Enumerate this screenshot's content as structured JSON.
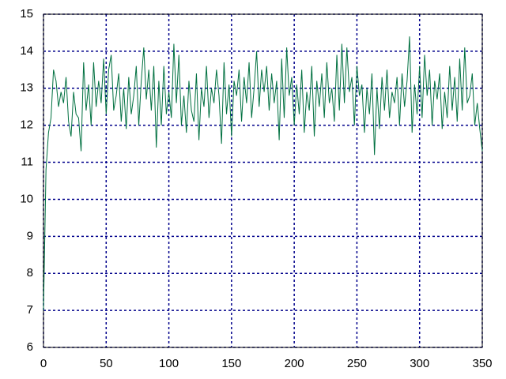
{
  "chart_data": {
    "type": "line",
    "x": [
      0,
      2,
      4,
      6,
      8,
      10,
      12,
      14,
      16,
      18,
      20,
      22,
      24,
      26,
      28,
      30,
      32,
      34,
      36,
      38,
      40,
      42,
      44,
      46,
      48,
      50,
      52,
      54,
      56,
      58,
      60,
      62,
      64,
      66,
      68,
      70,
      72,
      74,
      76,
      78,
      80,
      82,
      84,
      86,
      88,
      90,
      92,
      94,
      96,
      98,
      100,
      102,
      104,
      106,
      108,
      110,
      112,
      114,
      116,
      118,
      120,
      122,
      124,
      126,
      128,
      130,
      132,
      134,
      136,
      138,
      140,
      142,
      144,
      146,
      148,
      150,
      152,
      154,
      156,
      158,
      160,
      162,
      164,
      166,
      168,
      170,
      172,
      174,
      176,
      178,
      180,
      182,
      184,
      186,
      188,
      190,
      192,
      194,
      196,
      198,
      200,
      202,
      204,
      206,
      208,
      210,
      212,
      214,
      216,
      218,
      220,
      222,
      224,
      226,
      228,
      230,
      232,
      234,
      236,
      238,
      240,
      242,
      244,
      246,
      248,
      250,
      252,
      254,
      256,
      258,
      260,
      262,
      264,
      266,
      268,
      270,
      272,
      274,
      276,
      278,
      280,
      282,
      284,
      286,
      288,
      290,
      292,
      294,
      296,
      298,
      300,
      302,
      304,
      306,
      308,
      310,
      312,
      314,
      316,
      318,
      320,
      322,
      324,
      326,
      328,
      330,
      332,
      334,
      336,
      338,
      340,
      342,
      344,
      346,
      348,
      350
    ],
    "series": [
      {
        "color": "#007040",
        "values": [
          7.0,
          10.8,
          11.8,
          12.2,
          13.5,
          13.2,
          12.5,
          12.9,
          12.6,
          13.3,
          12.1,
          11.7,
          12.9,
          12.3,
          12.2,
          11.3,
          13.7,
          12.4,
          13.1,
          12.0,
          13.7,
          12.5,
          13.2,
          12.6,
          13.8,
          12.3,
          13.5,
          13.9,
          12.4,
          12.8,
          13.4,
          12.1,
          13.0,
          11.9,
          13.3,
          12.3,
          12.8,
          13.6,
          12.0,
          13.2,
          14.1,
          12.7,
          13.5,
          12.4,
          13.6,
          11.4,
          13.2,
          12.0,
          13.6,
          12.3,
          12.9,
          12.2,
          14.2,
          12.6,
          13.9,
          12.0,
          12.8,
          11.8,
          13.2,
          12.4,
          12.1,
          13.4,
          11.6,
          13.0,
          12.5,
          13.6,
          12.2,
          13.0,
          12.6,
          13.5,
          12.8,
          11.5,
          13.7,
          12.3,
          13.1,
          11.7,
          13.2,
          12.8,
          13.5,
          12.1,
          13.3,
          12.6,
          13.7,
          12.2,
          13.0,
          14.0,
          12.5,
          13.5,
          12.9,
          13.6,
          12.4,
          13.4,
          12.6,
          13.2,
          11.6,
          13.8,
          12.2,
          14.1,
          12.8,
          13.3,
          12.0,
          13.1,
          12.3,
          13.5,
          11.8,
          12.9,
          12.4,
          13.6,
          11.7,
          13.2,
          12.5,
          13.4,
          12.2,
          13.7,
          12.6,
          13.0,
          12.1,
          13.9,
          12.4,
          14.2,
          12.6,
          14.1,
          12.9,
          13.3,
          12.0,
          13.6,
          12.8,
          13.1,
          11.8,
          13.0,
          12.3,
          13.4,
          11.2,
          13.0,
          11.9,
          13.3,
          12.4,
          13.5,
          12.2,
          12.9,
          12.6,
          13.3,
          12.0,
          13.4,
          12.5,
          13.2,
          14.4,
          11.8,
          13.1,
          12.3,
          13.6,
          12.2,
          13.9,
          12.8,
          13.5,
          12.0,
          13.2,
          12.7,
          13.4,
          11.9,
          12.9,
          12.2,
          13.6,
          12.4,
          13.3,
          12.1,
          13.8,
          12.4,
          14.1,
          12.6,
          12.8,
          13.4,
          12.0,
          12.6,
          11.9,
          11.3
        ]
      }
    ],
    "xlim": [
      0,
      350
    ],
    "ylim": [
      6,
      15
    ],
    "xticks": [
      0,
      50,
      100,
      150,
      200,
      250,
      300,
      350
    ],
    "yticks": [
      6,
      7,
      8,
      9,
      10,
      11,
      12,
      13,
      14,
      15
    ],
    "grid": true,
    "grid_color": "#00008b"
  }
}
